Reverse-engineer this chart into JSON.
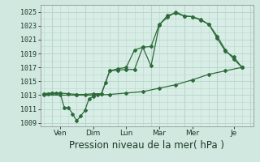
{
  "bg_color": "#d0e8e0",
  "plot_bg_color": "#d8ede6",
  "grid_color": "#b8d8cc",
  "line_color": "#2d6b3a",
  "marker_color": "#2d6b3a",
  "ylim": [
    1008.5,
    1026
  ],
  "yticks": [
    1009,
    1011,
    1013,
    1015,
    1017,
    1019,
    1021,
    1023,
    1025
  ],
  "xlabel": "Pression niveau de la mer( hPa )",
  "xlabel_fontsize": 8.5,
  "day_labels": [
    "Ven",
    "Dim",
    "Lun",
    "Mar",
    "Mer",
    "Je"
  ],
  "day_x": [
    1.0,
    3.0,
    5.0,
    7.0,
    9.0,
    11.5
  ],
  "vline_x": [
    0.5,
    2.5,
    4.5,
    6.5,
    8.5,
    10.5,
    12.5
  ],
  "line1_x": [
    0.0,
    0.25,
    0.5,
    0.75,
    1.0,
    1.25,
    1.5,
    1.75,
    2.0,
    2.25,
    2.5,
    2.75,
    3.0,
    3.25,
    3.5,
    3.75,
    4.0,
    4.5,
    5.0,
    5.5,
    6.0,
    6.5,
    7.0,
    7.5,
    8.0,
    8.5,
    9.0,
    9.5,
    10.0,
    10.5,
    11.0,
    11.5,
    12.0
  ],
  "line1_y": [
    1013.2,
    1013.2,
    1013.3,
    1013.3,
    1013.3,
    1011.2,
    1011.2,
    1010.3,
    1009.3,
    1010.0,
    1010.8,
    1012.5,
    1012.8,
    1013.1,
    1013.2,
    1014.8,
    1016.5,
    1016.8,
    1017.0,
    1019.5,
    1019.9,
    1017.2,
    1023.1,
    1024.5,
    1024.8,
    1024.4,
    1024.3,
    1023.9,
    1023.2,
    1021.2,
    1019.3,
    1018.5,
    1017.0
  ],
  "line2_x": [
    0.0,
    0.5,
    1.0,
    1.5,
    2.0,
    2.5,
    3.0,
    3.5,
    4.0,
    4.5,
    5.0,
    5.5,
    6.0,
    6.5,
    7.0,
    7.5,
    8.0,
    8.5,
    9.0,
    9.5,
    10.0,
    10.5,
    11.0,
    11.5,
    12.0
  ],
  "line2_y": [
    1013.2,
    1013.3,
    1013.3,
    1013.2,
    1013.1,
    1013.1,
    1013.2,
    1013.2,
    1016.5,
    1016.6,
    1016.7,
    1016.7,
    1019.9,
    1020.0,
    1023.2,
    1024.2,
    1025.0,
    1024.4,
    1024.3,
    1023.8,
    1023.2,
    1021.5,
    1019.5,
    1018.2,
    1017.0
  ],
  "line3_x": [
    0.0,
    1.0,
    2.0,
    3.0,
    4.0,
    5.0,
    6.0,
    7.0,
    8.0,
    9.0,
    10.0,
    11.0,
    12.0
  ],
  "line3_y": [
    1013.0,
    1013.0,
    1013.0,
    1013.0,
    1013.1,
    1013.3,
    1013.5,
    1014.0,
    1014.5,
    1015.2,
    1016.0,
    1016.5,
    1017.0
  ]
}
